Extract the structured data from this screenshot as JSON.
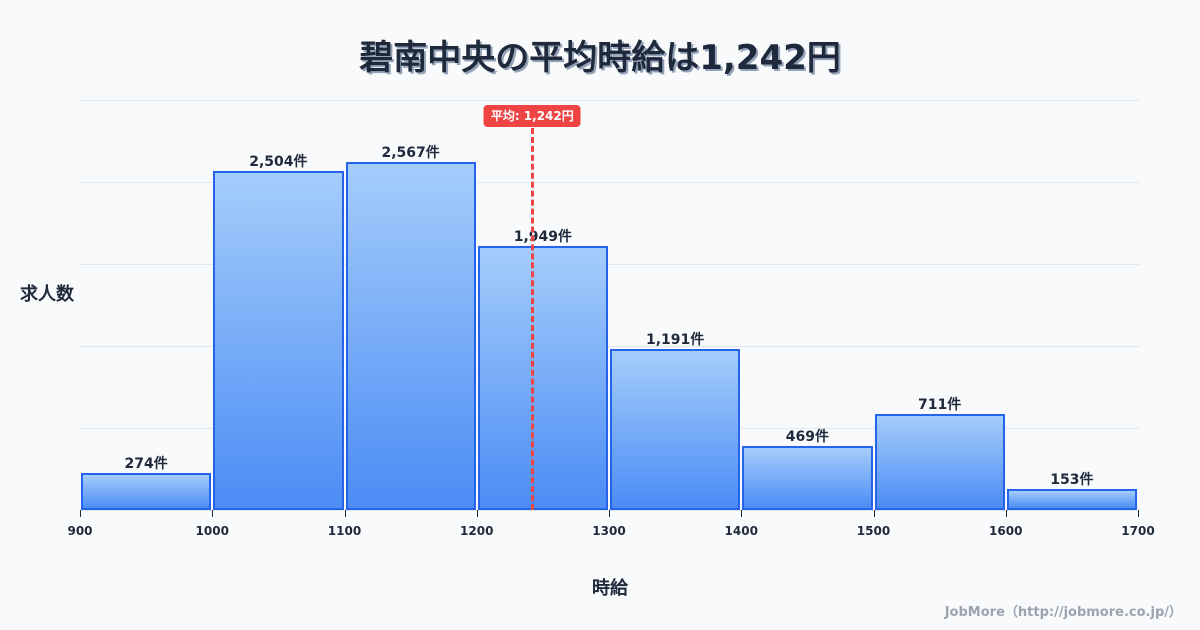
{
  "title": "碧南中央の平均時給は1,242円",
  "ylabel": "求人数",
  "xlabel": "時給",
  "credit": "JobMore（http://jobmore.co.jp/）",
  "mean_badge": "平均: 1,242円",
  "colors": {
    "bar_border": "#2563eb",
    "bar_top": "#a5cdfb",
    "bar_bottom": "#4b8cf5",
    "mean_line": "#ef4444",
    "text": "#1e293b",
    "grid": "#e2e8f0",
    "background": "#f8fafc"
  },
  "chart_data": {
    "type": "bar",
    "title": "碧南中央の平均時給は1,242円",
    "xlabel": "時給",
    "ylabel": "求人数",
    "bins": [
      [
        900,
        1000
      ],
      [
        1000,
        1100
      ],
      [
        1100,
        1200
      ],
      [
        1200,
        1300
      ],
      [
        1300,
        1400
      ],
      [
        1400,
        1500
      ],
      [
        1500,
        1600
      ],
      [
        1600,
        1700
      ]
    ],
    "categories": [
      "900-1000",
      "1000-1100",
      "1100-1200",
      "1200-1300",
      "1300-1400",
      "1400-1500",
      "1500-1600",
      "1600-1700"
    ],
    "values": [
      274,
      2504,
      2567,
      1949,
      1191,
      469,
      711,
      153
    ],
    "value_labels": [
      "274件",
      "2,504件",
      "2,567件",
      "1,949件",
      "1,191件",
      "469件",
      "711件",
      "153件"
    ],
    "x_ticks": [
      "900",
      "1000",
      "1100",
      "1200",
      "1300",
      "1400",
      "1500",
      "1600",
      "1700"
    ],
    "xlim": [
      900,
      1700
    ],
    "ylim": [
      0,
      3025
    ],
    "grid": true,
    "annotations": [
      {
        "type": "vline",
        "x": 1242,
        "label": "平均: 1,242円",
        "style": "dashed",
        "color": "#ef4444"
      }
    ]
  }
}
